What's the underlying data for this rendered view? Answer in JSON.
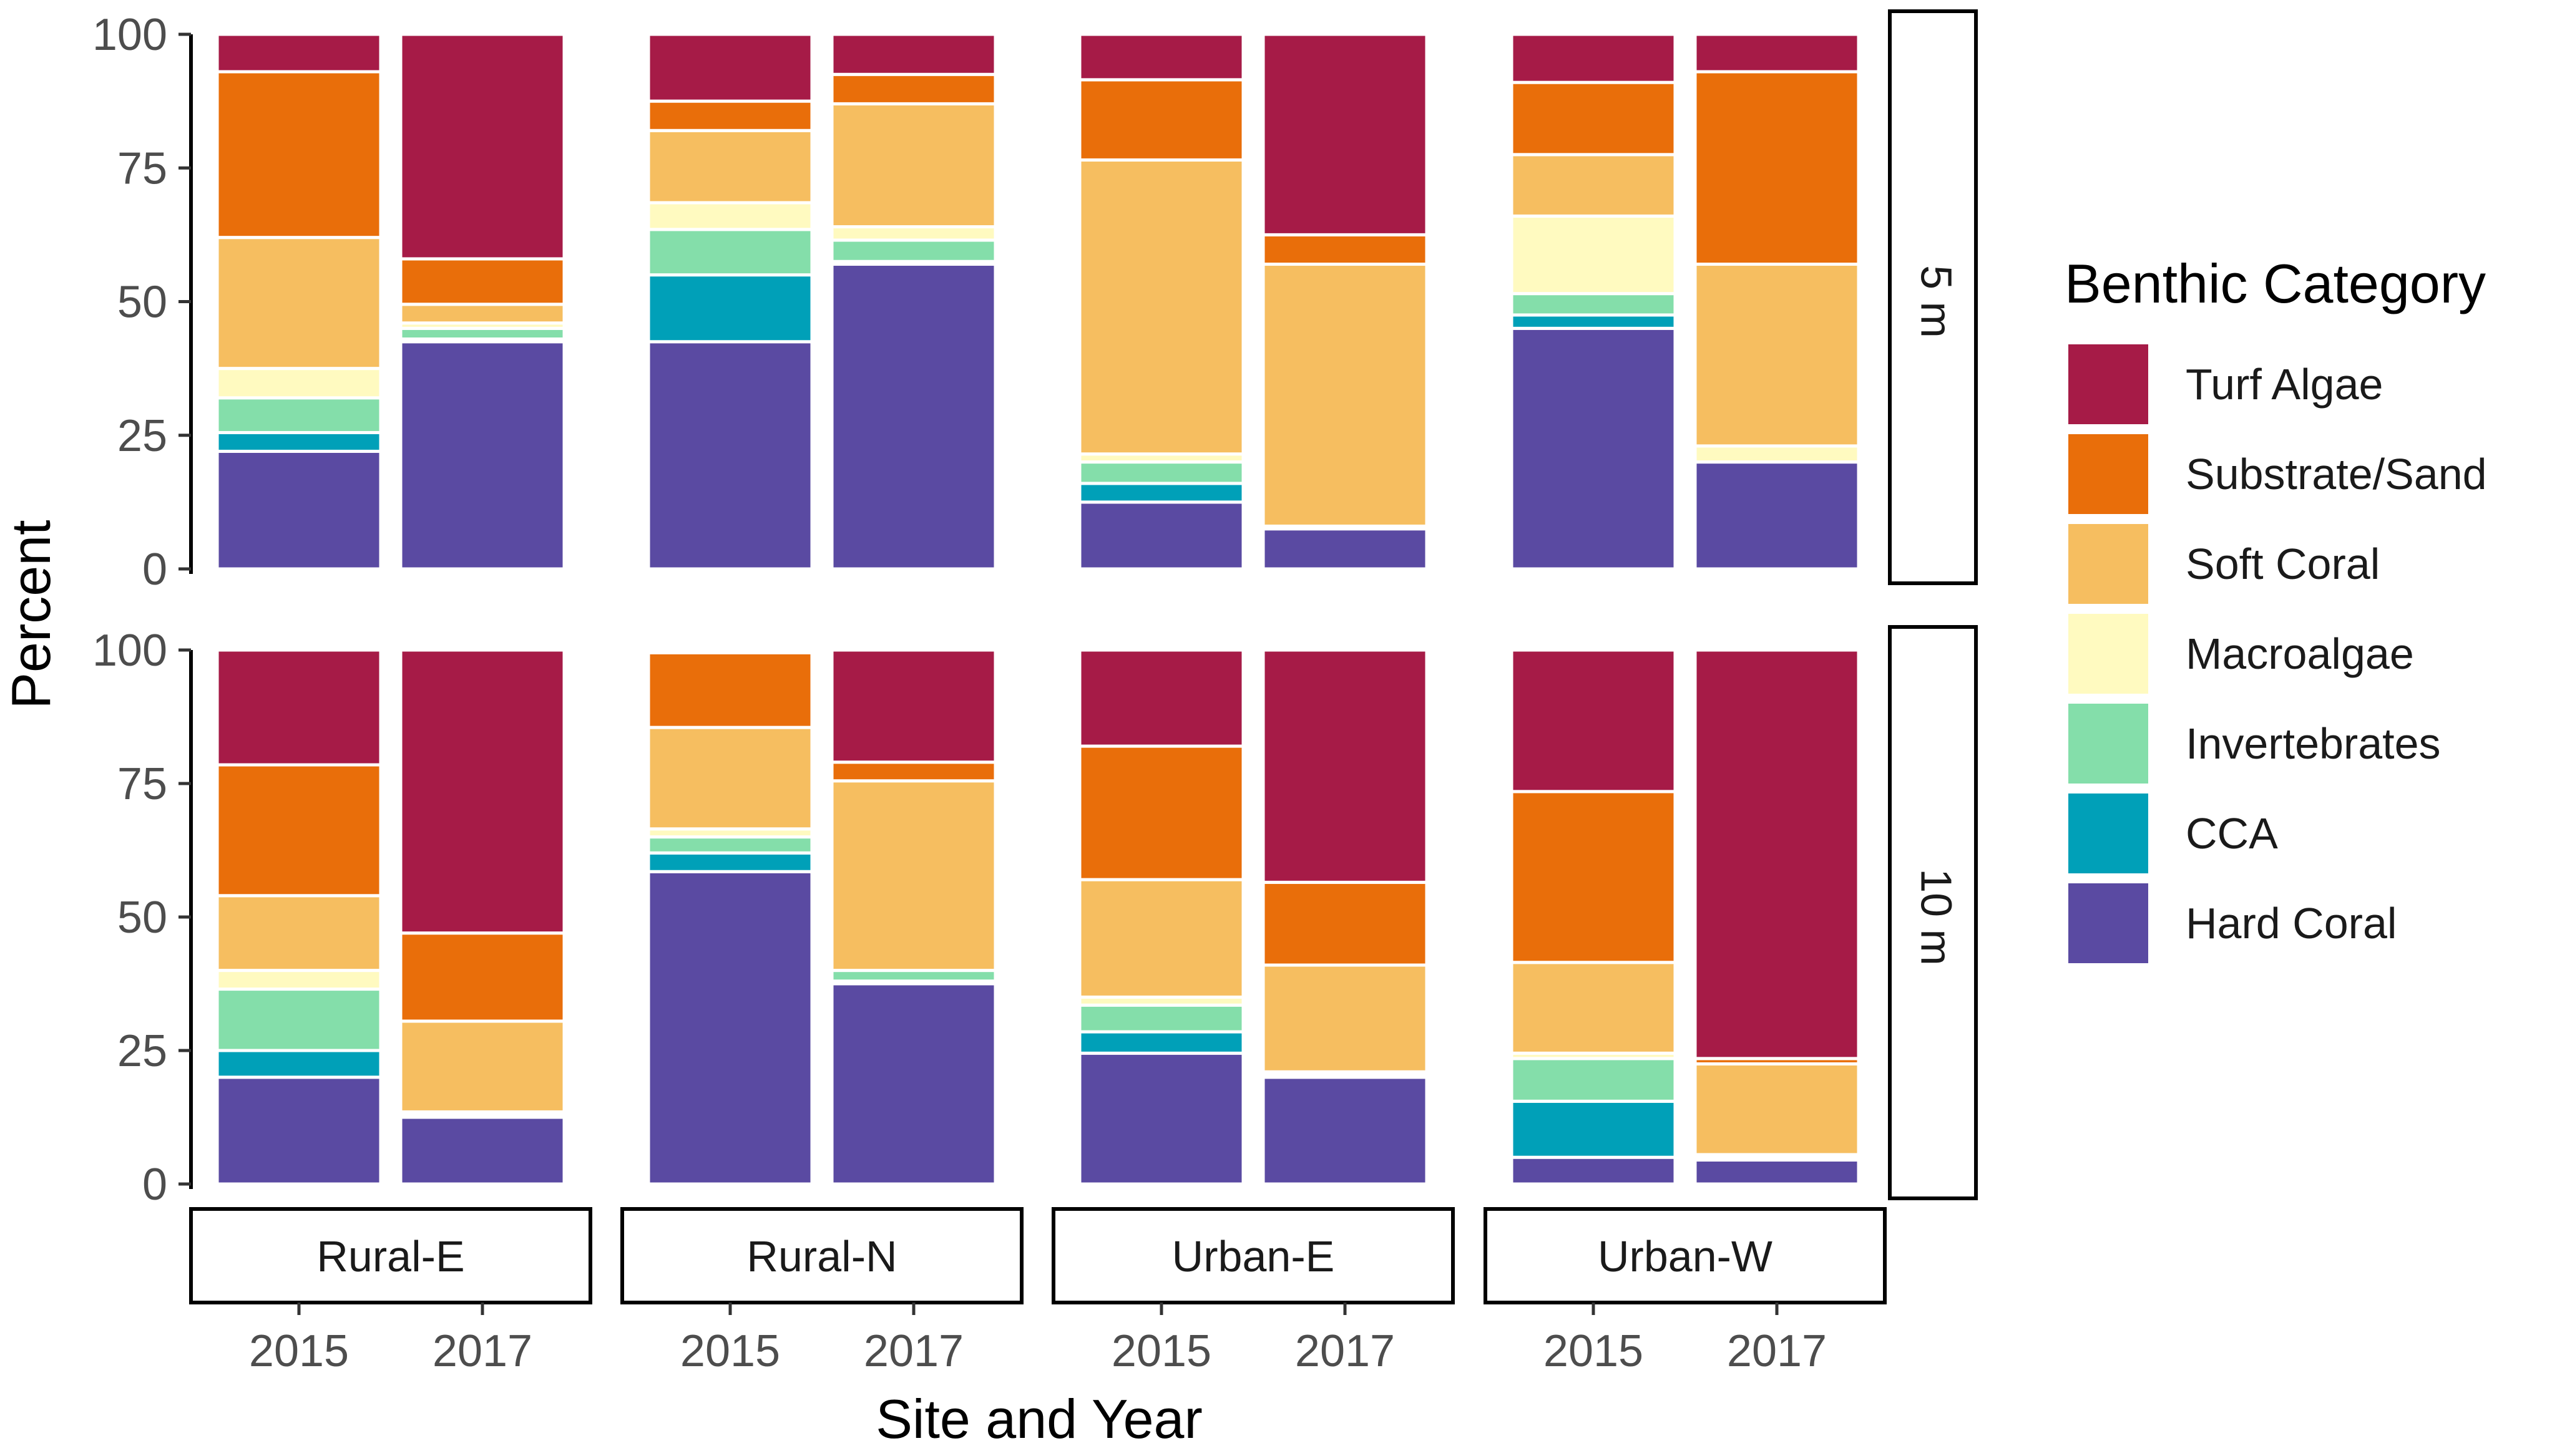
{
  "chart_data": {
    "type": "bar",
    "stacked": true,
    "percent": true,
    "xlabel": "Site and Year",
    "ylabel": "Percent",
    "ylim": [
      0,
      100
    ],
    "yticks": [
      "0",
      "25",
      "50",
      "75",
      "100"
    ],
    "grid": false,
    "legend": {
      "title": "Benthic Category",
      "position": "right"
    },
    "sites": [
      "Rural-E",
      "Rural-N",
      "Urban-E",
      "Urban-W"
    ],
    "years": [
      "2015",
      "2017"
    ],
    "depths": [
      "5 m",
      "10 m"
    ],
    "categories": [
      {
        "name": "Turf Algae",
        "color": "#A61B47"
      },
      {
        "name": "Substrate/Sand",
        "color": "#E96E0A"
      },
      {
        "name": "Soft Coral",
        "color": "#F6BE60"
      },
      {
        "name": "Macroalgae",
        "color": "#FFFAC0"
      },
      {
        "name": "Invertebrates",
        "color": "#84DEAA"
      },
      {
        "name": "CCA",
        "color": "#00A0B8"
      },
      {
        "name": "Hard Coral",
        "color": "#5A4AA2"
      }
    ],
    "stack_order_bottom_to_top": [
      "Hard Coral",
      "CCA",
      "Invertebrates",
      "Macroalgae",
      "Soft Coral",
      "Substrate/Sand",
      "Turf Algae"
    ],
    "panels": [
      {
        "depth": "5 m",
        "site": "Rural-E",
        "bars": [
          {
            "year": "2015",
            "values": {
              "Hard Coral": 22,
              "CCA": 3.5,
              "Invertebrates": 6.5,
              "Macroalgae": 5.5,
              "Soft Coral": 24.5,
              "Substrate/Sand": 31,
              "Turf Algae": 7
            }
          },
          {
            "year": "2017",
            "values": {
              "Hard Coral": 42.5,
              "CCA": 0.5,
              "Invertebrates": 2,
              "Macroalgae": 1,
              "Soft Coral": 3.5,
              "Substrate/Sand": 8.5,
              "Turf Algae": 42
            }
          }
        ]
      },
      {
        "depth": "5 m",
        "site": "Rural-N",
        "bars": [
          {
            "year": "2015",
            "values": {
              "Hard Coral": 42.5,
              "CCA": 12.5,
              "Invertebrates": 8.5,
              "Macroalgae": 5,
              "Soft Coral": 13.5,
              "Substrate/Sand": 5.5,
              "Turf Algae": 12.5
            }
          },
          {
            "year": "2017",
            "values": {
              "Hard Coral": 57,
              "CCA": 0.5,
              "Invertebrates": 4,
              "Macroalgae": 2.5,
              "Soft Coral": 23,
              "Substrate/Sand": 5.5,
              "Turf Algae": 7.5
            }
          }
        ]
      },
      {
        "depth": "5 m",
        "site": "Urban-E",
        "bars": [
          {
            "year": "2015",
            "values": {
              "Hard Coral": 12.5,
              "CCA": 3.5,
              "Invertebrates": 4,
              "Macroalgae": 1.5,
              "Soft Coral": 55,
              "Substrate/Sand": 15,
              "Turf Algae": 8.5
            }
          },
          {
            "year": "2017",
            "values": {
              "Hard Coral": 7.5,
              "CCA": 0,
              "Invertebrates": 0.5,
              "Macroalgae": 0,
              "Soft Coral": 49,
              "Substrate/Sand": 5.5,
              "Turf Algae": 37.5
            }
          }
        ]
      },
      {
        "depth": "5 m",
        "site": "Urban-W",
        "bars": [
          {
            "year": "2015",
            "values": {
              "Hard Coral": 45,
              "CCA": 2.5,
              "Invertebrates": 4,
              "Macroalgae": 14.5,
              "Soft Coral": 11.5,
              "Substrate/Sand": 13.5,
              "Turf Algae": 9
            }
          },
          {
            "year": "2017",
            "values": {
              "Hard Coral": 20,
              "CCA": 0,
              "Invertebrates": 0,
              "Macroalgae": 3,
              "Soft Coral": 34,
              "Substrate/Sand": 36,
              "Turf Algae": 7
            }
          }
        ]
      },
      {
        "depth": "10 m",
        "site": "Rural-E",
        "bars": [
          {
            "year": "2015",
            "values": {
              "Hard Coral": 20,
              "CCA": 5,
              "Invertebrates": 11.5,
              "Macroalgae": 3.5,
              "Soft Coral": 14,
              "Substrate/Sand": 24.5,
              "Turf Algae": 21.5
            }
          },
          {
            "year": "2017",
            "values": {
              "Hard Coral": 12.5,
              "CCA": 0.5,
              "Invertebrates": 0.5,
              "Macroalgae": 0,
              "Soft Coral": 17,
              "Substrate/Sand": 16.5,
              "Turf Algae": 53
            }
          }
        ]
      },
      {
        "depth": "10 m",
        "site": "Rural-N",
        "bars": [
          {
            "year": "2015",
            "values": {
              "Hard Coral": 58.5,
              "CCA": 3.5,
              "Invertebrates": 3,
              "Macroalgae": 1.5,
              "Soft Coral": 19,
              "Substrate/Sand": 14,
              "Turf Algae": 0.5
            }
          },
          {
            "year": "2017",
            "values": {
              "Hard Coral": 37.5,
              "CCA": 0.5,
              "Invertebrates": 2,
              "Macroalgae": 0,
              "Soft Coral": 35.5,
              "Substrate/Sand": 3.5,
              "Turf Algae": 21
            }
          }
        ]
      },
      {
        "depth": "10 m",
        "site": "Urban-E",
        "bars": [
          {
            "year": "2015",
            "values": {
              "Hard Coral": 24.5,
              "CCA": 4,
              "Invertebrates": 5,
              "Macroalgae": 1.5,
              "Soft Coral": 22,
              "Substrate/Sand": 25,
              "Turf Algae": 18
            }
          },
          {
            "year": "2017",
            "values": {
              "Hard Coral": 20,
              "CCA": 0.5,
              "Invertebrates": 0.5,
              "Macroalgae": 0,
              "Soft Coral": 20,
              "Substrate/Sand": 15.5,
              "Turf Algae": 43.5
            }
          }
        ]
      },
      {
        "depth": "10 m",
        "site": "Urban-W",
        "bars": [
          {
            "year": "2015",
            "values": {
              "Hard Coral": 5,
              "CCA": 10.5,
              "Invertebrates": 8,
              "Macroalgae": 1,
              "Soft Coral": 17,
              "Substrate/Sand": 32,
              "Turf Algae": 26.5
            }
          },
          {
            "year": "2017",
            "values": {
              "Hard Coral": 4.5,
              "CCA": 0.5,
              "Invertebrates": 0,
              "Macroalgae": 0.5,
              "Soft Coral": 17,
              "Substrate/Sand": 1,
              "Turf Algae": 76.5
            }
          }
        ]
      }
    ]
  }
}
